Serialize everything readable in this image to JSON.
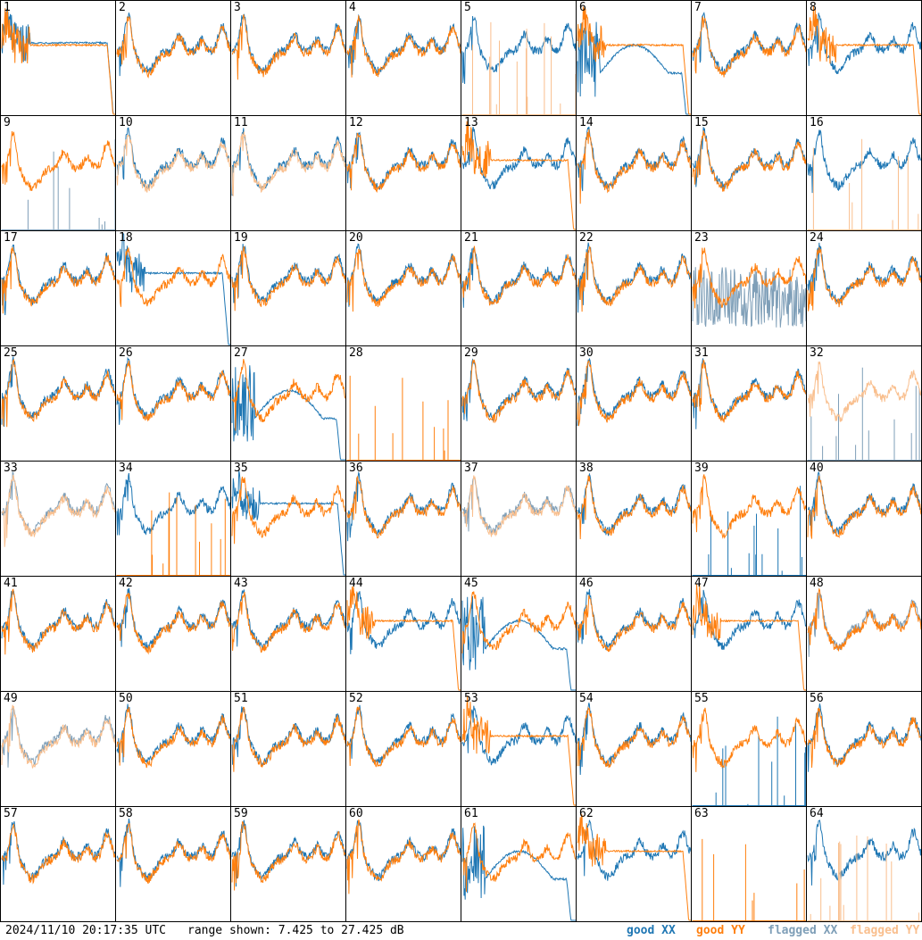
{
  "footer": {
    "timestamp": "2024/11/10 20:17:35 UTC",
    "range": "range shown: 7.425 to 27.425 dB"
  },
  "legend": {
    "good_xx": "good XX",
    "good_yy": "good YY",
    "flagged_xx": "flagged XX",
    "flagged_yy": "flagged YY"
  },
  "colors": {
    "good_xx": "#1f77b4",
    "good_yy": "#ff7f0e",
    "flagged_xx": "#7f9fb8",
    "flagged_yy": "#f9bf8e"
  },
  "chart_data": {
    "type": "line",
    "ylim": [
      7.425,
      27.425
    ],
    "grid": "8x8",
    "panels": [
      {
        "id": "1",
        "xx": "good",
        "yy": "good",
        "xx_shape": "flat-drop",
        "yy_shape": "flat-drop"
      },
      {
        "id": "2",
        "xx": "good",
        "yy": "good",
        "xx_shape": "normal",
        "yy_shape": "normal"
      },
      {
        "id": "3",
        "xx": "good",
        "yy": "good",
        "xx_shape": "normal",
        "yy_shape": "normal"
      },
      {
        "id": "4",
        "xx": "good",
        "yy": "good",
        "xx_shape": "normal",
        "yy_shape": "normal"
      },
      {
        "id": "5",
        "xx": "good",
        "yy": "flagged",
        "xx_shape": "normal",
        "yy_shape": "spikes"
      },
      {
        "id": "6",
        "xx": "good",
        "yy": "good",
        "xx_shape": "hump-drop",
        "yy_shape": "flat-drop"
      },
      {
        "id": "7",
        "xx": "good",
        "yy": "good",
        "xx_shape": "normal",
        "yy_shape": "normal"
      },
      {
        "id": "8",
        "xx": "good",
        "yy": "good",
        "xx_shape": "normal",
        "yy_shape": "flat-drop"
      },
      {
        "id": "9",
        "xx": "flagged",
        "yy": "good",
        "xx_shape": "spikes",
        "yy_shape": "normal"
      },
      {
        "id": "10",
        "xx": "good",
        "yy": "flagged",
        "xx_shape": "normal",
        "yy_shape": "normal"
      },
      {
        "id": "11",
        "xx": "good",
        "yy": "flagged",
        "xx_shape": "normal",
        "yy_shape": "normal"
      },
      {
        "id": "12",
        "xx": "good",
        "yy": "good",
        "xx_shape": "normal",
        "yy_shape": "normal"
      },
      {
        "id": "13",
        "xx": "good",
        "yy": "good",
        "xx_shape": "normal",
        "yy_shape": "flat-drop"
      },
      {
        "id": "14",
        "xx": "good",
        "yy": "good",
        "xx_shape": "normal",
        "yy_shape": "normal"
      },
      {
        "id": "15",
        "xx": "good",
        "yy": "good",
        "xx_shape": "normal",
        "yy_shape": "normal"
      },
      {
        "id": "16",
        "xx": "good",
        "yy": "flagged",
        "xx_shape": "normal",
        "yy_shape": "spikes"
      },
      {
        "id": "17",
        "xx": "good",
        "yy": "good",
        "xx_shape": "normal",
        "yy_shape": "normal"
      },
      {
        "id": "18",
        "xx": "good",
        "yy": "good",
        "xx_shape": "flat-drop",
        "yy_shape": "normal"
      },
      {
        "id": "19",
        "xx": "good",
        "yy": "good",
        "xx_shape": "normal",
        "yy_shape": "normal"
      },
      {
        "id": "20",
        "xx": "good",
        "yy": "good",
        "xx_shape": "normal",
        "yy_shape": "normal"
      },
      {
        "id": "21",
        "xx": "good",
        "yy": "good",
        "xx_shape": "normal",
        "yy_shape": "normal"
      },
      {
        "id": "22",
        "xx": "good",
        "yy": "good",
        "xx_shape": "normal",
        "yy_shape": "normal"
      },
      {
        "id": "23",
        "xx": "flagged",
        "yy": "good",
        "xx_shape": "noise",
        "yy_shape": "normal"
      },
      {
        "id": "24",
        "xx": "good",
        "yy": "good",
        "xx_shape": "normal",
        "yy_shape": "normal"
      },
      {
        "id": "25",
        "xx": "good",
        "yy": "good",
        "xx_shape": "normal",
        "yy_shape": "normal"
      },
      {
        "id": "26",
        "xx": "good",
        "yy": "good",
        "xx_shape": "normal",
        "yy_shape": "normal"
      },
      {
        "id": "27",
        "xx": "good",
        "yy": "good",
        "xx_shape": "hump-drop",
        "yy_shape": "normal"
      },
      {
        "id": "28",
        "xx": "none",
        "yy": "good",
        "xx_shape": "none",
        "yy_shape": "spikes"
      },
      {
        "id": "29",
        "xx": "good",
        "yy": "good",
        "xx_shape": "normal",
        "yy_shape": "normal"
      },
      {
        "id": "30",
        "xx": "good",
        "yy": "good",
        "xx_shape": "normal",
        "yy_shape": "normal"
      },
      {
        "id": "31",
        "xx": "good",
        "yy": "good",
        "xx_shape": "normal",
        "yy_shape": "normal"
      },
      {
        "id": "32",
        "xx": "flagged",
        "yy": "flagged",
        "xx_shape": "spikes",
        "yy_shape": "normal"
      },
      {
        "id": "33",
        "xx": "flagged",
        "yy": "flagged",
        "xx_shape": "normal",
        "yy_shape": "normal"
      },
      {
        "id": "34",
        "xx": "good",
        "yy": "good",
        "xx_shape": "normal",
        "yy_shape": "spikes"
      },
      {
        "id": "35",
        "xx": "good",
        "yy": "good",
        "xx_shape": "flat-drop",
        "yy_shape": "normal"
      },
      {
        "id": "36",
        "xx": "good",
        "yy": "good",
        "xx_shape": "normal",
        "yy_shape": "normal"
      },
      {
        "id": "37",
        "xx": "flagged",
        "yy": "flagged",
        "xx_shape": "normal",
        "yy_shape": "normal"
      },
      {
        "id": "38",
        "xx": "good",
        "yy": "good",
        "xx_shape": "normal",
        "yy_shape": "normal"
      },
      {
        "id": "39",
        "xx": "good",
        "yy": "good",
        "xx_shape": "spikes",
        "yy_shape": "normal"
      },
      {
        "id": "40",
        "xx": "good",
        "yy": "good",
        "xx_shape": "normal",
        "yy_shape": "normal"
      },
      {
        "id": "41",
        "xx": "good",
        "yy": "good",
        "xx_shape": "normal",
        "yy_shape": "normal"
      },
      {
        "id": "42",
        "xx": "good",
        "yy": "good",
        "xx_shape": "normal",
        "yy_shape": "normal"
      },
      {
        "id": "43",
        "xx": "good",
        "yy": "good",
        "xx_shape": "normal",
        "yy_shape": "normal"
      },
      {
        "id": "44",
        "xx": "good",
        "yy": "good",
        "xx_shape": "normal",
        "yy_shape": "flat-drop"
      },
      {
        "id": "45",
        "xx": "good",
        "yy": "good",
        "xx_shape": "hump-drop",
        "yy_shape": "normal"
      },
      {
        "id": "46",
        "xx": "good",
        "yy": "good",
        "xx_shape": "normal",
        "yy_shape": "normal"
      },
      {
        "id": "47",
        "xx": "good",
        "yy": "good",
        "xx_shape": "normal",
        "yy_shape": "flat-drop"
      },
      {
        "id": "48",
        "xx": "flagged",
        "yy": "good",
        "xx_shape": "normal",
        "yy_shape": "normal"
      },
      {
        "id": "49",
        "xx": "flagged",
        "yy": "flagged",
        "xx_shape": "normal",
        "yy_shape": "normal"
      },
      {
        "id": "50",
        "xx": "good",
        "yy": "good",
        "xx_shape": "normal",
        "yy_shape": "normal"
      },
      {
        "id": "51",
        "xx": "good",
        "yy": "good",
        "xx_shape": "normal",
        "yy_shape": "normal"
      },
      {
        "id": "52",
        "xx": "good",
        "yy": "good",
        "xx_shape": "normal",
        "yy_shape": "normal"
      },
      {
        "id": "53",
        "xx": "good",
        "yy": "good",
        "xx_shape": "normal",
        "yy_shape": "flat-drop"
      },
      {
        "id": "54",
        "xx": "good",
        "yy": "good",
        "xx_shape": "normal",
        "yy_shape": "normal"
      },
      {
        "id": "55",
        "xx": "good",
        "yy": "good",
        "xx_shape": "spikes",
        "yy_shape": "normal"
      },
      {
        "id": "56",
        "xx": "good",
        "yy": "good",
        "xx_shape": "normal",
        "yy_shape": "normal"
      },
      {
        "id": "57",
        "xx": "good",
        "yy": "good",
        "xx_shape": "normal",
        "yy_shape": "normal"
      },
      {
        "id": "58",
        "xx": "good",
        "yy": "good",
        "xx_shape": "normal",
        "yy_shape": "normal"
      },
      {
        "id": "59",
        "xx": "good",
        "yy": "good",
        "xx_shape": "normal",
        "yy_shape": "normal"
      },
      {
        "id": "60",
        "xx": "good",
        "yy": "good",
        "xx_shape": "normal",
        "yy_shape": "normal"
      },
      {
        "id": "61",
        "xx": "good",
        "yy": "good",
        "xx_shape": "hump-drop",
        "yy_shape": "normal"
      },
      {
        "id": "62",
        "xx": "good",
        "yy": "good",
        "xx_shape": "normal",
        "yy_shape": "flat-drop"
      },
      {
        "id": "63",
        "xx": "none",
        "yy": "good",
        "xx_shape": "none",
        "yy_shape": "spikes"
      },
      {
        "id": "64",
        "xx": "good",
        "yy": "flagged",
        "xx_shape": "normal",
        "yy_shape": "spikes"
      }
    ]
  }
}
